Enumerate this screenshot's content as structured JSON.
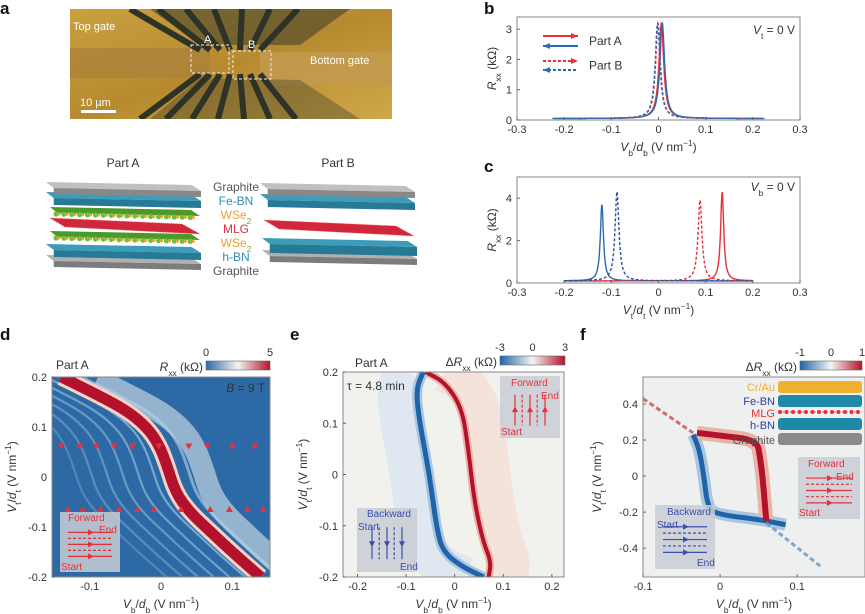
{
  "panels": {
    "a": {
      "letter": "a",
      "photo": {
        "top_gate": "Top gate",
        "bottom_gate": "Bottom gate",
        "region_a": "A",
        "region_b": "B",
        "scale_bar": "10 µm"
      },
      "schematic": {
        "part_a_title": "Part A",
        "part_b_title": "Part B",
        "layers": [
          {
            "label": "Graphite",
            "color": "#555555"
          },
          {
            "label": "Fe-BN",
            "color": "#2f8fb0"
          },
          {
            "label": "WSe",
            "sub": "2",
            "color": "#f0a030"
          },
          {
            "label": "MLG",
            "color": "#e03040"
          },
          {
            "label": "WSe",
            "sub": "2",
            "color": "#f0a030"
          },
          {
            "label": "h-BN",
            "color": "#2f8fb0"
          },
          {
            "label": "Graphite",
            "color": "#555555"
          }
        ]
      }
    },
    "b": {
      "letter": "b"
    },
    "c": {
      "letter": "c"
    },
    "d": {
      "letter": "d"
    },
    "e": {
      "letter": "e"
    },
    "f": {
      "letter": "f"
    }
  },
  "colors": {
    "red": "#e8303a",
    "blue": "#2c6bb0",
    "dark_blue": "#2d4fa0",
    "heat_bg": "#2d6aa5",
    "heat_red": "#b3122c"
  },
  "chart_data": [
    {
      "id": "b",
      "type": "line",
      "annotation": [
        "V",
        "t",
        " = 0 V"
      ],
      "xlim": [
        -0.3,
        0.3
      ],
      "ylim": [
        0,
        3.4
      ],
      "xticks": [
        "-0.3",
        "-0.2",
        "-0.1",
        "0",
        "0.1",
        "0.2",
        "0.3"
      ],
      "xtick_values": [
        -0.3,
        -0.2,
        -0.1,
        0,
        0.1,
        0.2,
        0.3
      ],
      "yticks": [
        "0",
        "1",
        "2",
        "3"
      ],
      "ytick_values": [
        0,
        1,
        2,
        3
      ],
      "xlabel": [
        [
          "V",
          "i"
        ],
        [
          "b",
          "sub"
        ],
        [
          "/",
          "n"
        ],
        [
          "d",
          "i"
        ],
        [
          "b",
          "sub"
        ],
        [
          " (V nm",
          "n"
        ],
        [
          "−1",
          "sup"
        ],
        [
          ")",
          "n"
        ]
      ],
      "ylabel": [
        [
          "R",
          "i"
        ],
        [
          "xx",
          "sub"
        ],
        [
          " (kΩ)",
          "n"
        ]
      ],
      "legend": [
        {
          "name": "Part A",
          "entries": [
            {
              "color": "#e8303a",
              "style": "solid",
              "direction": "right"
            },
            {
              "color": "#2c6bb0",
              "style": "solid",
              "direction": "left"
            }
          ]
        },
        {
          "name": "Part B",
          "entries": [
            {
              "color": "#e8303a",
              "style": "dashed",
              "direction": "right"
            },
            {
              "color": "#2c6bb0",
              "style": "dashed",
              "direction": "left"
            }
          ]
        }
      ],
      "series": [
        {
          "part": "A",
          "sweep": "forward",
          "color": "#e8303a",
          "style": "solid",
          "x_range": [
            -0.22,
            0.22
          ],
          "baseline": 0.05,
          "peak_x": 0.006,
          "peak_y": 3.2,
          "half_width": 0.006
        },
        {
          "part": "A",
          "sweep": "backward",
          "color": "#2c6bb0",
          "style": "solid",
          "x_range": [
            -0.225,
            0.225
          ],
          "baseline": 0.05,
          "peak_x": 0.008,
          "peak_y": 3.2,
          "half_width": 0.006
        },
        {
          "part": "B",
          "sweep": "forward",
          "color": "#e8303a",
          "style": "dashed",
          "x_range": [
            -0.17,
            0.18
          ],
          "baseline": 0.05,
          "peak_x": -0.001,
          "peak_y": 3.2,
          "half_width": 0.006
        },
        {
          "part": "B",
          "sweep": "backward",
          "color": "#2c6bb0",
          "style": "dashed",
          "x_range": [
            -0.17,
            0.17
          ],
          "baseline": 0.05,
          "peak_x": -0.002,
          "peak_y": 3.2,
          "half_width": 0.006
        }
      ]
    },
    {
      "id": "c",
      "type": "line",
      "annotation": [
        "V",
        "b",
        " = 0 V"
      ],
      "xlim": [
        -0.3,
        0.3
      ],
      "ylim": [
        0,
        5
      ],
      "xticks": [
        "-0.3",
        "-0.2",
        "-0.1",
        "0",
        "0.1",
        "0.2",
        "0.3"
      ],
      "xtick_values": [
        -0.3,
        -0.2,
        -0.1,
        0,
        0.1,
        0.2,
        0.3
      ],
      "yticks": [
        "0",
        "2",
        "4"
      ],
      "ytick_values": [
        0,
        2,
        4
      ],
      "xlabel": [
        [
          "V",
          "i"
        ],
        [
          "t",
          "sub"
        ],
        [
          "/",
          "n"
        ],
        [
          "d",
          "i"
        ],
        [
          "t",
          "sub"
        ],
        [
          " (V nm",
          "n"
        ],
        [
          "−1",
          "sup"
        ],
        [
          ")",
          "n"
        ]
      ],
      "ylabel": [
        [
          "R",
          "i"
        ],
        [
          "xx",
          "sub"
        ],
        [
          " (kΩ)",
          "n"
        ]
      ],
      "series": [
        {
          "part": "A",
          "sweep": "forward",
          "color": "#e8303a",
          "style": "solid",
          "x_range": [
            -0.2,
            0.2
          ],
          "baseline": 0.1,
          "peak_x": 0.135,
          "peak_y": 4.3,
          "half_width": 0.004
        },
        {
          "part": "A",
          "sweep": "backward",
          "color": "#2c6bb0",
          "style": "solid",
          "x_range": [
            -0.2,
            0.2
          ],
          "baseline": 0.1,
          "peak_x": -0.12,
          "peak_y": 3.7,
          "half_width": 0.004
        },
        {
          "part": "B",
          "sweep": "forward",
          "color": "#e8303a",
          "style": "dashed",
          "x_range": [
            -0.2,
            0.2
          ],
          "baseline": 0.1,
          "peak_x": 0.088,
          "peak_y": 3.9,
          "half_width": 0.005
        },
        {
          "part": "B",
          "sweep": "backward",
          "color": "#2d4fa0",
          "style": "dashed",
          "x_range": [
            -0.2,
            0.2
          ],
          "baseline": 0.1,
          "peak_x": -0.088,
          "peak_y": 4.3,
          "half_width": 0.005
        }
      ]
    },
    {
      "id": "d",
      "type": "heatmap",
      "title_left": "Part A",
      "annotation": "B = 9 T",
      "colorbar": {
        "label": [
          [
            "R",
            "i"
          ],
          [
            "xx",
            "sub"
          ],
          [
            " (kΩ)",
            "n"
          ]
        ],
        "ticks": [
          "0",
          "5"
        ],
        "range": [
          0,
          5
        ],
        "colors": [
          "#2d6aa5",
          "#f4f4f4",
          "#b3122c"
        ]
      },
      "xlim": [
        -0.153,
        0.153
      ],
      "ylim": [
        -0.2,
        0.2
      ],
      "xticks": [
        "-0.1",
        "0",
        "0.1"
      ],
      "xtick_values": [
        -0.1,
        0,
        0.1
      ],
      "yticks": [
        "0.2",
        "0.1",
        "0",
        "-0.1",
        "-0.2"
      ],
      "ytick_values": [
        0.2,
        0.1,
        0,
        -0.1,
        -0.2
      ],
      "xlabel": [
        [
          "V",
          "i"
        ],
        [
          "b",
          "sub"
        ],
        [
          "/",
          "n"
        ],
        [
          "d",
          "i"
        ],
        [
          "b",
          "sub"
        ],
        [
          " (V nm",
          "n"
        ],
        [
          "−1",
          "sup"
        ],
        [
          ")",
          "n"
        ]
      ],
      "ylabel": [
        [
          "V",
          "i"
        ],
        [
          "t",
          "sub"
        ],
        [
          "/",
          "n"
        ],
        [
          "d",
          "i"
        ],
        [
          "t",
          "sub"
        ],
        [
          " (V nm",
          "n"
        ],
        [
          "−1",
          "sup"
        ],
        [
          ")",
          "n"
        ]
      ],
      "ridge": [
        [
          -0.14,
          0.2
        ],
        [
          -0.1,
          0.172
        ],
        [
          -0.05,
          0.135
        ],
        [
          -0.02,
          0.1
        ],
        [
          -0.003,
          0.065
        ],
        [
          0.008,
          0.025
        ],
        [
          0.02,
          -0.03
        ],
        [
          0.04,
          -0.07
        ],
        [
          0.07,
          -0.11
        ],
        [
          0.1,
          -0.15
        ],
        [
          0.14,
          -0.2
        ]
      ],
      "markers_down": {
        "y": 0.061,
        "x": [
          -0.14,
          -0.114,
          -0.091,
          -0.066,
          -0.04,
          -0.003,
          0.039,
          0.065,
          0.1,
          0.132
        ]
      },
      "markers_up": {
        "y": -0.064,
        "x": [
          -0.131,
          -0.11,
          -0.085,
          -0.059,
          -0.033,
          -0.01,
          0.028,
          0.069,
          0.096,
          0.121,
          0.143
        ]
      },
      "inset": {
        "title": "Forward",
        "end": "End",
        "start": "Start",
        "color": "#e8303a",
        "orientation": "horizontal"
      }
    },
    {
      "id": "e",
      "type": "heatmap",
      "title_left": "Part A",
      "annotation": "τ = 4.8 min",
      "colorbar": {
        "label": [
          [
            "Δ",
            "n"
          ],
          [
            "R",
            "i"
          ],
          [
            "xx",
            "sub"
          ],
          [
            " (kΩ)",
            "n"
          ]
        ],
        "ticks": [
          "-3",
          "0",
          "3"
        ],
        "range": [
          -3,
          3
        ],
        "colors": [
          "#1f64a8",
          "#f4f4f4",
          "#b3122c"
        ]
      },
      "xlim": [
        -0.23,
        0.225
      ],
      "ylim": [
        -0.2,
        0.2
      ],
      "xticks": [
        "-0.2",
        "-0.1",
        "0",
        "0.1",
        "0.2"
      ],
      "xtick_values": [
        -0.2,
        -0.1,
        0,
        0.1,
        0.2
      ],
      "yticks": [
        "0.2",
        "0.1",
        "0",
        "-0.1",
        "-0.2"
      ],
      "ytick_values": [
        0.2,
        0.1,
        0,
        -0.1,
        -0.2
      ],
      "xlabel": [
        [
          "V",
          "i"
        ],
        [
          "b",
          "sub"
        ],
        [
          "/",
          "n"
        ],
        [
          "d",
          "i"
        ],
        [
          "b",
          "sub"
        ],
        [
          " (V nm",
          "n"
        ],
        [
          "−1",
          "sup"
        ],
        [
          ")",
          "n"
        ]
      ],
      "ylabel": [
        [
          "V",
          "i"
        ],
        [
          "t",
          "sub"
        ],
        [
          "/",
          "n"
        ],
        [
          "d",
          "i"
        ],
        [
          "t",
          "sub"
        ],
        [
          " (V nm",
          "n"
        ],
        [
          "−1",
          "sup"
        ],
        [
          ")",
          "n"
        ]
      ],
      "blue_ridge": [
        [
          -0.065,
          0.2
        ],
        [
          -0.08,
          0.165
        ],
        [
          -0.072,
          0.1
        ],
        [
          -0.052,
          0.0
        ],
        [
          -0.038,
          -0.1
        ],
        [
          -0.025,
          -0.15
        ],
        [
          0.015,
          -0.18
        ],
        [
          0.06,
          -0.2
        ]
      ],
      "red_ridge": [
        [
          -0.06,
          0.2
        ],
        [
          -0.02,
          0.18
        ],
        [
          0.015,
          0.13
        ],
        [
          0.028,
          0.05
        ],
        [
          0.04,
          -0.05
        ],
        [
          0.058,
          -0.13
        ],
        [
          0.075,
          -0.17
        ],
        [
          0.07,
          -0.2
        ]
      ],
      "inset_forward": {
        "title": "Forward",
        "end": "End",
        "start": "Start",
        "color": "#e8303a",
        "orientation": "vertical-up"
      },
      "inset_backward": {
        "title": "Backward",
        "start": "Start",
        "end": "End",
        "color": "#3a4fb0",
        "orientation": "vertical-down"
      }
    },
    {
      "id": "f",
      "type": "heatmap",
      "colorbar": {
        "label": [
          [
            "Δ",
            "n"
          ],
          [
            "R",
            "i"
          ],
          [
            "xx",
            "sub"
          ],
          [
            " (kΩ)",
            "n"
          ]
        ],
        "ticks": [
          "-1",
          "0",
          "1"
        ],
        "range": [
          -1,
          1
        ],
        "colors": [
          "#1f64a8",
          "#f4f4f4",
          "#b3122c"
        ]
      },
      "xlim": [
        -0.1,
        0.188
      ],
      "ylim": [
        -0.56,
        0.55
      ],
      "xticks": [
        "-0.1",
        "0",
        "0.1"
      ],
      "xtick_values": [
        -0.1,
        0,
        0.1
      ],
      "yticks": [
        "0.4",
        "0.2",
        "0",
        "-0.2",
        "-0.4"
      ],
      "ytick_values": [
        0.4,
        0.2,
        0,
        -0.2,
        -0.4
      ],
      "xlabel": [
        [
          "V",
          "i"
        ],
        [
          "b",
          "sub"
        ],
        [
          "/",
          "n"
        ],
        [
          "d",
          "i"
        ],
        [
          "b",
          "sub"
        ],
        [
          " (V nm",
          "n"
        ],
        [
          "−1",
          "sup"
        ],
        [
          ")",
          "n"
        ]
      ],
      "ylabel": [
        [
          "V",
          "i"
        ],
        [
          "t",
          "sub"
        ],
        [
          "/",
          "n"
        ],
        [
          "d",
          "i"
        ],
        [
          "t",
          "sub"
        ],
        [
          " (V nm",
          "n"
        ],
        [
          "−1",
          "sup"
        ],
        [
          ")",
          "n"
        ]
      ],
      "blue_ridge": [
        [
          -0.035,
          0.23
        ],
        [
          -0.027,
          0.15
        ],
        [
          -0.021,
          0.0
        ],
        [
          -0.016,
          -0.18
        ],
        [
          0.0,
          -0.215
        ],
        [
          0.05,
          -0.24
        ],
        [
          0.085,
          -0.27
        ]
      ],
      "red_ridge": [
        [
          -0.03,
          0.24
        ],
        [
          0.0,
          0.225
        ],
        [
          0.048,
          0.2
        ],
        [
          0.052,
          0.1
        ],
        [
          0.055,
          0.0
        ],
        [
          0.058,
          -0.15
        ],
        [
          0.06,
          -0.25
        ]
      ],
      "stack_legend": [
        {
          "label": "Cr/Au",
          "color": "#f0b030",
          "kind": "bar"
        },
        {
          "label": "Fe-BN",
          "color": "#1f8aa8",
          "kind": "bar",
          "text_color": "#2b3fa0"
        },
        {
          "label": "MLG",
          "color": "#e8303a",
          "kind": "dots"
        },
        {
          "label": "h-BN",
          "color": "#1f8aa8",
          "kind": "bar",
          "text_color": "#2b3fa0"
        },
        {
          "label": "Graphite",
          "color": "#8a8a8a",
          "kind": "bar",
          "text_color": "#555555"
        }
      ],
      "inset_forward": {
        "title": "Forward",
        "end": "End",
        "start": "Start",
        "color": "#e8303a",
        "orientation": "horizontal"
      },
      "inset_backward": {
        "title": "Backward",
        "start": "Start",
        "end": "End",
        "color": "#3a4fb0",
        "orientation": "horizontal-down"
      }
    }
  ]
}
